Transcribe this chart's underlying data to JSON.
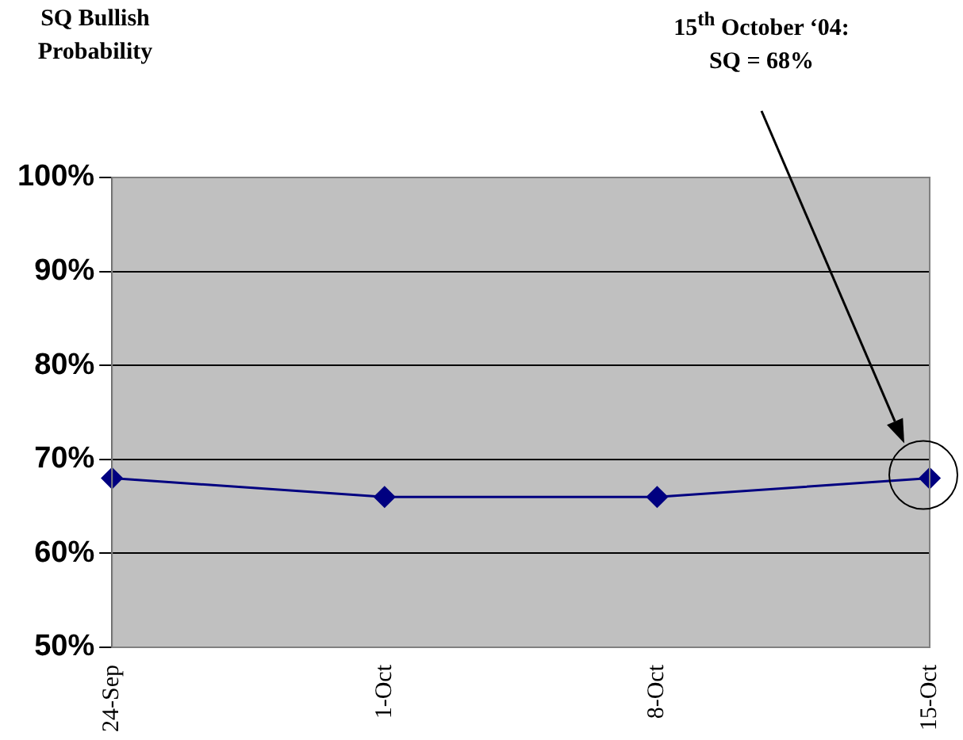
{
  "chart_data": {
    "type": "line",
    "ylabel": "SQ Bullish Probability",
    "categories": [
      "24-Sep",
      "1-Oct",
      "8-Oct",
      "15-Oct"
    ],
    "series": [
      {
        "color": "#000080",
        "values": [
          68,
          66,
          66,
          68
        ]
      }
    ],
    "ylim": [
      50,
      100
    ],
    "yticks": [
      {
        "value": 50,
        "label": "50%"
      },
      {
        "value": 60,
        "label": "60%"
      },
      {
        "value": 70,
        "label": "70%"
      },
      {
        "value": 80,
        "label": "80%"
      },
      {
        "value": 90,
        "label": "90%"
      },
      {
        "value": 100,
        "label": "100%"
      }
    ],
    "grid": "y",
    "legend": false,
    "marker": "diamond",
    "line_style": "solid",
    "annotations": [
      "15$^{th}$ October ‘04:\nSQ = 68%"
    ]
  }
}
